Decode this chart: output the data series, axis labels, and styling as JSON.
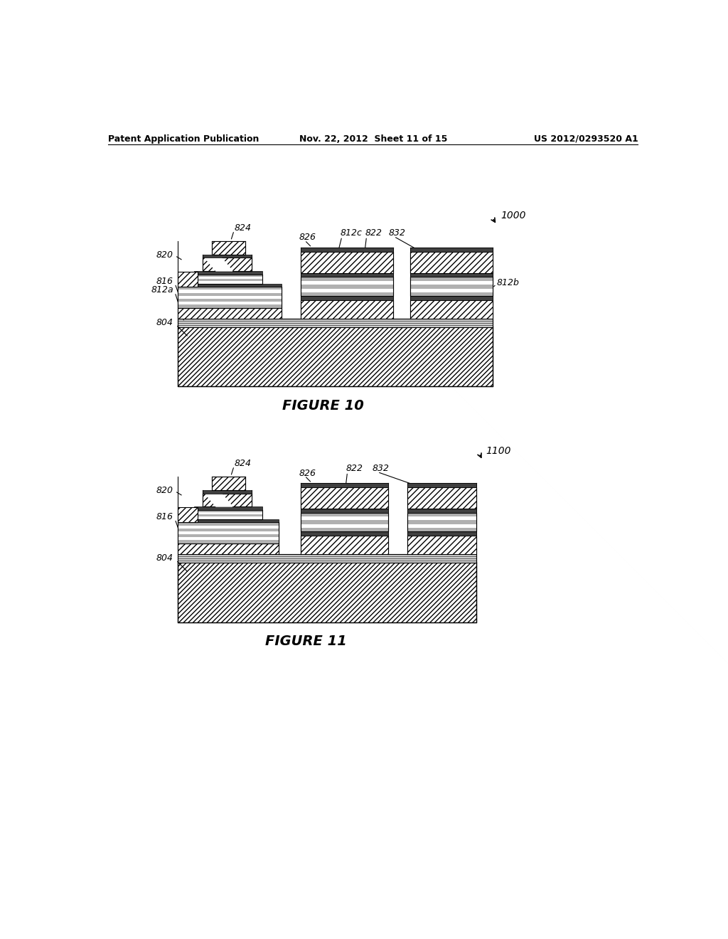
{
  "bg_color": "#ffffff",
  "header_text": "Patent Application Publication",
  "header_date": "Nov. 22, 2012  Sheet 11 of 15",
  "header_patent": "US 2012/0293520 A1",
  "fig10_label": "FIGURE 10",
  "fig11_label": "FIGURE 11",
  "fig10_ref": "1000",
  "fig11_ref": "1100"
}
